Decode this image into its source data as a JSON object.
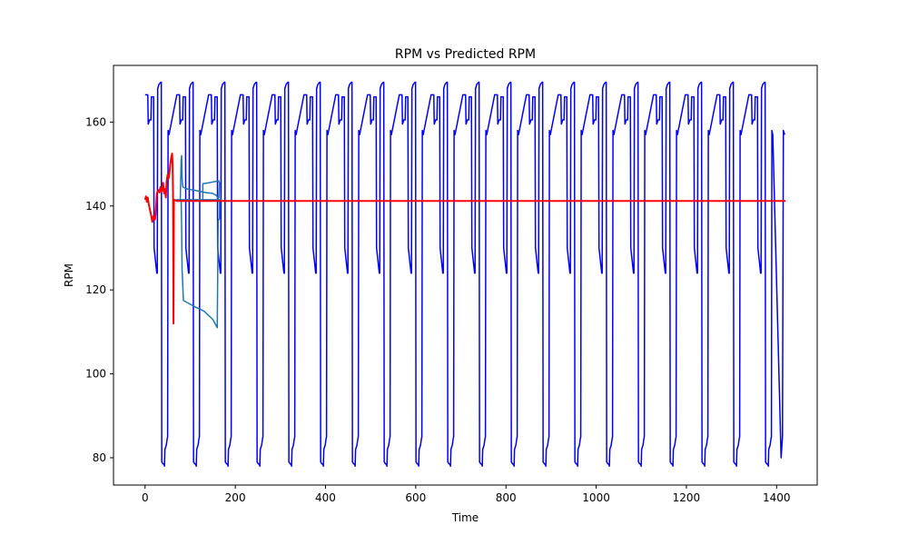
{
  "chart_data": {
    "type": "line",
    "title": "RPM vs Predicted RPM",
    "xlabel": "Time",
    "ylabel": "RPM",
    "xlim": [
      -70,
      1490
    ],
    "ylim": [
      73.5,
      173.5
    ],
    "xticks": [
      0,
      200,
      400,
      600,
      800,
      1000,
      1200,
      1400
    ],
    "yticks": [
      80,
      100,
      120,
      140,
      160
    ],
    "grid": false,
    "legend": "none",
    "series": [
      {
        "color": "#0000ff",
        "cycle": {
          "period": 70.45,
          "count": 20,
          "x_start": 0,
          "x_end": 1420,
          "points": [
            [
              0,
              166.5
            ],
            [
              6,
              166.5
            ],
            [
              7,
              159.5
            ],
            [
              10,
              160.5
            ],
            [
              13,
              160.5
            ],
            [
              14,
              166
            ],
            [
              19,
              166
            ],
            [
              20,
              130
            ],
            [
              23,
              127
            ],
            [
              26,
              124
            ],
            [
              27,
              124
            ],
            [
              28,
              168
            ],
            [
              31,
              169
            ],
            [
              35,
              169.5
            ],
            [
              36,
              169.5
            ],
            [
              37,
              79
            ],
            [
              40,
              78.5
            ],
            [
              42,
              78.5
            ],
            [
              43,
              78
            ],
            [
              44,
              82
            ],
            [
              47,
              83
            ],
            [
              49,
              84.5
            ],
            [
              50,
              85
            ],
            [
              51,
              158
            ],
            [
              53,
              157
            ]
          ]
        },
        "tail_points": [
          [
            1410,
            80
          ],
          [
            1413,
            85
          ],
          [
            1415,
            158
          ],
          [
            1418,
            157
          ]
        ]
      },
      {
        "color": "#1f77b4",
        "points": [
          [
            68,
            141.5
          ],
          [
            72,
            141.5
          ],
          [
            78,
            141.5
          ],
          [
            80,
            151
          ],
          [
            81,
            152
          ],
          [
            82,
            147
          ],
          [
            83,
            145
          ],
          [
            84,
            144.5
          ],
          [
            95,
            144
          ],
          [
            108,
            143.8
          ],
          [
            120,
            143.5
          ],
          [
            135,
            143.2
          ],
          [
            150,
            143
          ],
          [
            158,
            142.5
          ],
          [
            162,
            141.8
          ],
          [
            164,
            142
          ],
          [
            165,
            145.5
          ],
          [
            163,
            146
          ],
          [
            140,
            145.5
          ],
          [
            128,
            145.3
          ],
          [
            128,
            141.5
          ],
          [
            145,
            141.5
          ],
          [
            158,
            141.5
          ],
          [
            165,
            141.5
          ],
          [
            165,
            137
          ],
          [
            162,
            136.5
          ],
          [
            160,
            111
          ],
          [
            150,
            113
          ],
          [
            130,
            115
          ],
          [
            110,
            116
          ],
          [
            85,
            117.5
          ],
          [
            82,
            125
          ],
          [
            81,
            135
          ],
          [
            80,
            141.5
          ],
          [
            100,
            141.5
          ],
          [
            120,
            141.5
          ],
          [
            140,
            141.5
          ],
          [
            160,
            141.5
          ],
          [
            170,
            141.5
          ]
        ]
      },
      {
        "color": "#ff0000",
        "points": [
          [
            0,
            141.5
          ],
          [
            2,
            142.3
          ],
          [
            4,
            141
          ],
          [
            6,
            142
          ],
          [
            8,
            140.5
          ],
          [
            10,
            139.5
          ],
          [
            12,
            138.5
          ],
          [
            14,
            137.5
          ],
          [
            16,
            136.2
          ],
          [
            18,
            137.5
          ],
          [
            20,
            137
          ],
          [
            22,
            136.8
          ],
          [
            24,
            139
          ],
          [
            26,
            143
          ],
          [
            28,
            143.5
          ],
          [
            30,
            143.8
          ],
          [
            32,
            143.2
          ],
          [
            34,
            144.5
          ],
          [
            36,
            143.5
          ],
          [
            38,
            143.7
          ],
          [
            40,
            145.5
          ],
          [
            42,
            143
          ],
          [
            44,
            144
          ],
          [
            46,
            142
          ],
          [
            48,
            146
          ],
          [
            50,
            147.5
          ],
          [
            52,
            146.5
          ],
          [
            54,
            148
          ],
          [
            56,
            150
          ],
          [
            58,
            151.5
          ],
          [
            60,
            152.5
          ],
          [
            61,
            150
          ],
          [
            62,
            143
          ],
          [
            63,
            112
          ],
          [
            64,
            141.5
          ],
          [
            70,
            141.2
          ],
          [
            90,
            141.2
          ],
          [
            200,
            141.2
          ],
          [
            400,
            141.2
          ],
          [
            600,
            141.2
          ],
          [
            800,
            141.2
          ],
          [
            1000,
            141.2
          ],
          [
            1200,
            141.2
          ],
          [
            1420,
            141.2
          ]
        ]
      }
    ]
  }
}
